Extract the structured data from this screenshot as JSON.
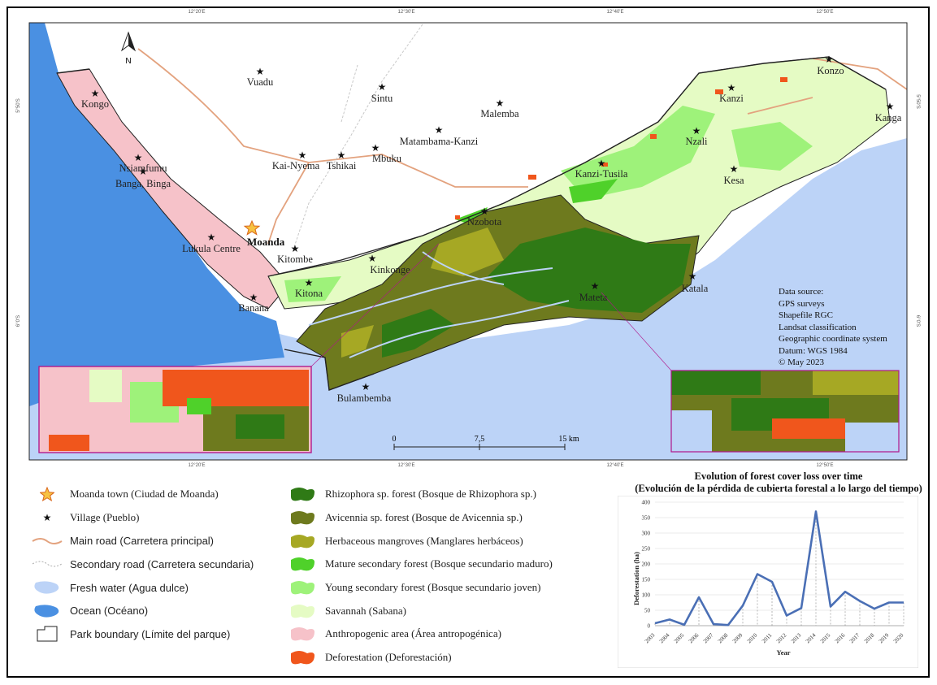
{
  "north_label": "N",
  "places": {
    "moanda": "Moanda",
    "vuadu": "Vuadu",
    "kongo": "Kongo",
    "sintu": "Sintu",
    "malemba": "Malemba",
    "konzo": "Konzo",
    "kanzi": "Kanzi",
    "kanga": "Kanga",
    "matambama_kanzi": "Matambama-Kanzi",
    "nzali": "Nzali",
    "kai_nyema": "Kai-Nyema",
    "tshikai": "Tshikai",
    "mbuku": "Mbuku",
    "nsiamfumu": "Nsiamfumu",
    "banga_binga": "Banga, Binga",
    "kanzi_tusila": "Kanzi-Tusila",
    "kesa": "Kesa",
    "nzobota": "Nzobota",
    "lukula_centre": "Lukula Centre",
    "kitombe": "Kitombe",
    "kinkonge": "Kinkonge",
    "kitona": "Kitona",
    "banana": "Banana",
    "mateta": "Mateta",
    "katala": "Katala",
    "bulambemba": "Bulambemba"
  },
  "scale_bar": {
    "zero": "0",
    "mid": "7,5",
    "end": "15 km"
  },
  "ticks": {
    "lon_1": "12°20'E",
    "lon_2": "12°30'E",
    "lon_3": "12°40'E",
    "lon_4": "12°50'E",
    "lat_1": "5°50'S",
    "lat_2": "6°0'S"
  },
  "data_source": [
    "Data source:",
    "GPS surveys",
    "Shapefile RGC",
    "Landsat classification",
    "Geographic coordinate system",
    "Datum: WGS 1984",
    "© May 2023"
  ],
  "legend_left": {
    "moanda_town": "Moanda town (Ciudad de Moanda)",
    "village": "Village (Pueblo)",
    "main_road": "Main road (Carretera principal)",
    "secondary_road": "Secondary road (Carretera secundaria)",
    "fresh_water": "Fresh water (Agua dulce)",
    "ocean": "Ocean (Océano)",
    "park_boundary": "Park boundary (Límite del parque)"
  },
  "legend_right": {
    "rhizophora": "Rhizophora sp. forest (Bosque de Rhizophora sp.)",
    "avicennia": "Avicennia sp. forest (Bosque de Avicennia sp.)",
    "herbaceous": "Herbaceous mangroves (Manglares herbáceos)",
    "mature_secondary": "Mature secondary forest (Bosque secundario maduro)",
    "young_secondary": "Young secondary forest (Bosque secundario joven)",
    "savannah": "Savannah (Sabana)",
    "anthropogenic": "Anthropogenic area (Área antropogénica)",
    "deforestation": "Deforestation (Deforestación)"
  },
  "colors": {
    "ocean": "#4a90e2",
    "fresh_water": "#bcd3f7",
    "rhizophora": "#2f7a16",
    "avicennia": "#6e7a1e",
    "herbaceous": "#a6a824",
    "mature_secondary": "#4fd12a",
    "young_secondary": "#9ef27a",
    "savannah": "#e5fbc4",
    "anthropogenic": "#f6c2c9",
    "deforestation": "#f0561c",
    "road": "#e3a27e",
    "line": "#4a6fb5"
  },
  "chart_data": {
    "type": "line",
    "title": "Evolution of forest cover loss over time",
    "subtitle": "(Evolución de la pérdida de cubierta forestal a lo largo del tiempo)",
    "xlabel": "Year",
    "ylabel": "Deforestation (ha)",
    "ylim": [
      0,
      400
    ],
    "yticks": [
      0,
      50,
      100,
      150,
      200,
      250,
      300,
      350,
      400
    ],
    "grid": true,
    "x": [
      "2003",
      "2004",
      "2005",
      "2006",
      "2007",
      "2008",
      "2009",
      "2010",
      "2011",
      "2012",
      "2013",
      "2014",
      "2015",
      "2016",
      "2017",
      "2018",
      "2019",
      "2020"
    ],
    "values": [
      8,
      20,
      3,
      92,
      5,
      2,
      65,
      167,
      142,
      33,
      57,
      370,
      62,
      110,
      80,
      55,
      75,
      75
    ]
  }
}
